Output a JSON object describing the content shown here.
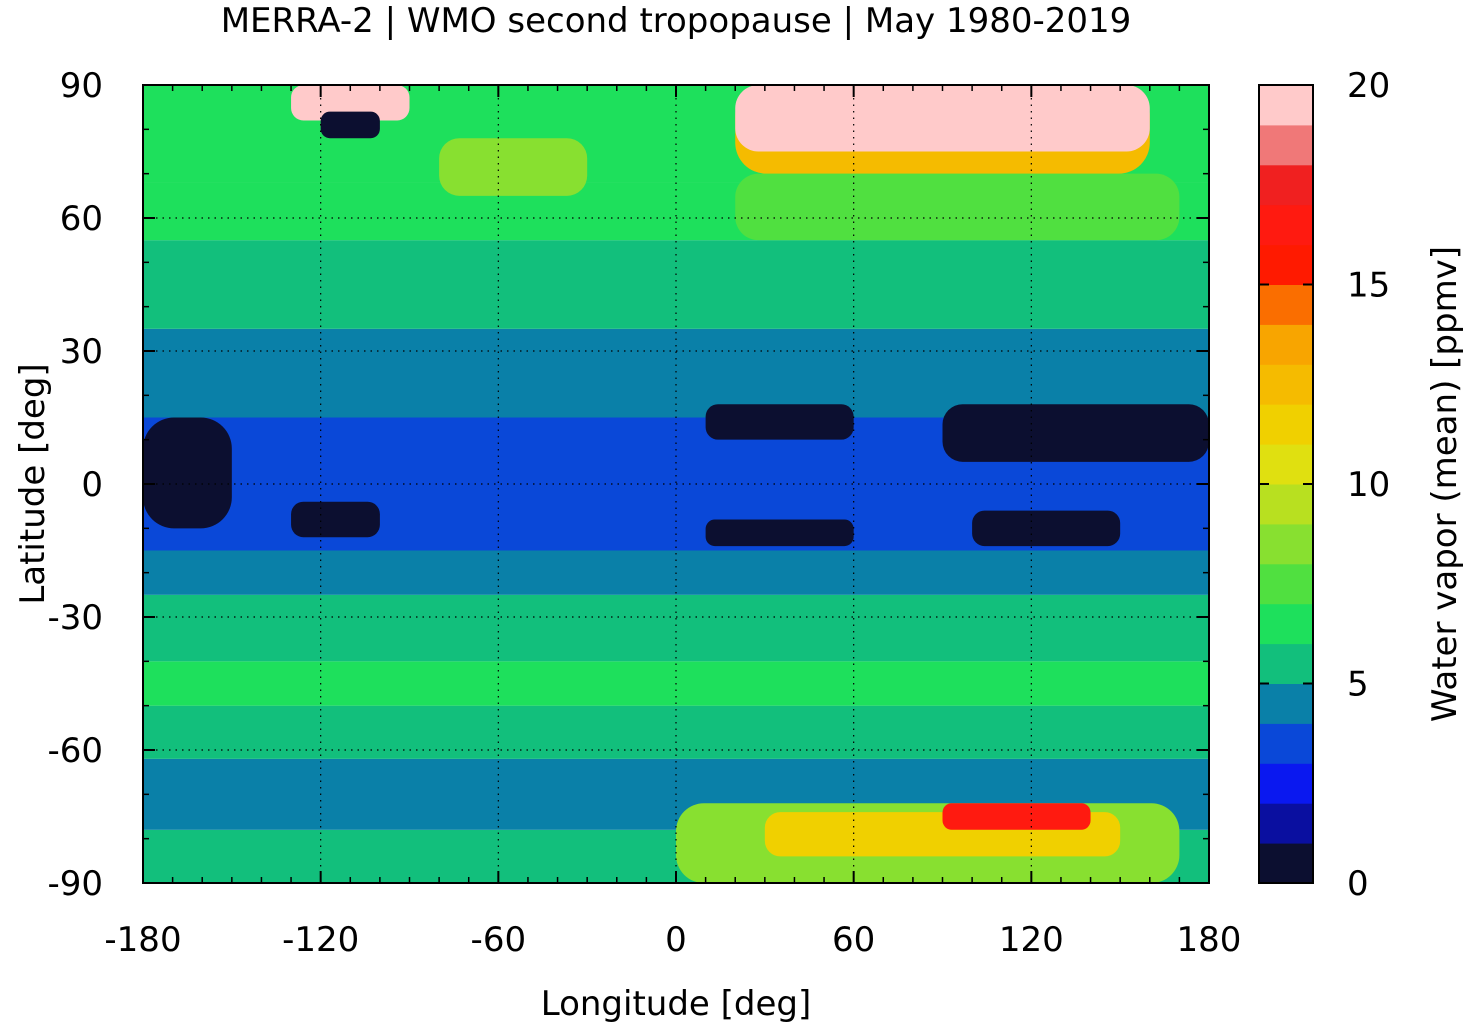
{
  "chart_data": {
    "type": "heatmap",
    "title": "MERRA-2 | WMO second tropopause | May 1980-2019",
    "xlabel": "Longitude [deg]",
    "ylabel": "Latitude [deg]",
    "colorbar_label": "Water vapor (mean) [ppmv]",
    "xlim": [
      -180,
      180
    ],
    "ylim": [
      -90,
      90
    ],
    "xticks": [
      -180,
      -120,
      -60,
      0,
      60,
      120,
      180
    ],
    "yticks": [
      -90,
      -60,
      -30,
      0,
      30,
      60,
      90
    ],
    "colorbar_range": [
      0,
      20
    ],
    "colorbar_ticks": [
      0,
      5,
      10,
      15,
      20
    ],
    "grid": true,
    "colorbar_levels": [
      {
        "from": 0,
        "to": 1,
        "color": "#0c0f30"
      },
      {
        "from": 1,
        "to": 2,
        "color": "#0a0fa0"
      },
      {
        "from": 2,
        "to": 3,
        "color": "#0a18f0"
      },
      {
        "from": 3,
        "to": 4,
        "color": "#0a48d8"
      },
      {
        "from": 4,
        "to": 5,
        "color": "#0a80a8"
      },
      {
        "from": 5,
        "to": 6,
        "color": "#12bf7c"
      },
      {
        "from": 6,
        "to": 7,
        "color": "#1ee05c"
      },
      {
        "from": 7,
        "to": 8,
        "color": "#50e040"
      },
      {
        "from": 8,
        "to": 9,
        "color": "#88e030"
      },
      {
        "from": 9,
        "to": 10,
        "color": "#b8e020"
      },
      {
        "from": 10,
        "to": 11,
        "color": "#e0e010"
      },
      {
        "from": 11,
        "to": 12,
        "color": "#f0d000"
      },
      {
        "from": 12,
        "to": 13,
        "color": "#f5bb00"
      },
      {
        "from": 13,
        "to": 14,
        "color": "#f8a500"
      },
      {
        "from": 14,
        "to": 15,
        "color": "#fa6e00"
      },
      {
        "from": 15,
        "to": 16,
        "color": "#ff1a00"
      },
      {
        "from": 16,
        "to": 17,
        "color": "#ff1a10"
      },
      {
        "from": 17,
        "to": 18,
        "color": "#f02020"
      },
      {
        "from": 18,
        "to": 19,
        "color": "#f07878"
      },
      {
        "from": 19,
        "to": 20,
        "color": "#ffcaca"
      }
    ],
    "zonal_bands": [
      {
        "lat_from": -90,
        "lat_to": -78,
        "value": 5.5
      },
      {
        "lat_from": -78,
        "lat_to": -62,
        "value": 4.5
      },
      {
        "lat_from": -62,
        "lat_to": -50,
        "value": 5.5
      },
      {
        "lat_from": -50,
        "lat_to": -40,
        "value": 6.5
      },
      {
        "lat_from": -40,
        "lat_to": -25,
        "value": 5.5
      },
      {
        "lat_from": -25,
        "lat_to": -15,
        "value": 4.5
      },
      {
        "lat_from": -15,
        "lat_to": 15,
        "value": 3.5
      },
      {
        "lat_from": 15,
        "lat_to": 35,
        "value": 4.5
      },
      {
        "lat_from": 35,
        "lat_to": 55,
        "value": 5.5
      },
      {
        "lat_from": 55,
        "lat_to": 68,
        "value": 6.5
      },
      {
        "lat_from": 68,
        "lat_to": 90,
        "value": 6.5
      }
    ],
    "regions": [
      {
        "lon": [
          -180,
          -150
        ],
        "lat": [
          -10,
          15
        ],
        "value": 0.5
      },
      {
        "lon": [
          -130,
          -100
        ],
        "lat": [
          -12,
          -4
        ],
        "value": 0.5
      },
      {
        "lon": [
          10,
          60
        ],
        "lat": [
          10,
          18
        ],
        "value": 0.5
      },
      {
        "lon": [
          10,
          60
        ],
        "lat": [
          -14,
          -8
        ],
        "value": 0.5
      },
      {
        "lon": [
          90,
          180
        ],
        "lat": [
          5,
          18
        ],
        "value": 0.5
      },
      {
        "lon": [
          100,
          150
        ],
        "lat": [
          -14,
          -6
        ],
        "value": 0.5
      },
      {
        "lon": [
          0,
          170
        ],
        "lat": [
          -90,
          -72
        ],
        "value": 8.5
      },
      {
        "lon": [
          30,
          150
        ],
        "lat": [
          -84,
          -74
        ],
        "value": 11.5
      },
      {
        "lon": [
          90,
          140
        ],
        "lat": [
          -78,
          -72
        ],
        "value": 16.5
      },
      {
        "lon": [
          20,
          170
        ],
        "lat": [
          55,
          70
        ],
        "value": 7.5
      },
      {
        "lon": [
          20,
          160
        ],
        "lat": [
          70,
          90
        ],
        "value": 12.5
      },
      {
        "lon": [
          20,
          160
        ],
        "lat": [
          75,
          90
        ],
        "value": 19.5
      },
      {
        "lon": [
          -130,
          -90
        ],
        "lat": [
          82,
          90
        ],
        "value": 19.5
      },
      {
        "lon": [
          -120,
          -100
        ],
        "lat": [
          78,
          84
        ],
        "value": 0.5
      },
      {
        "lon": [
          -80,
          -30
        ],
        "lat": [
          65,
          78
        ],
        "value": 8.5
      }
    ]
  }
}
